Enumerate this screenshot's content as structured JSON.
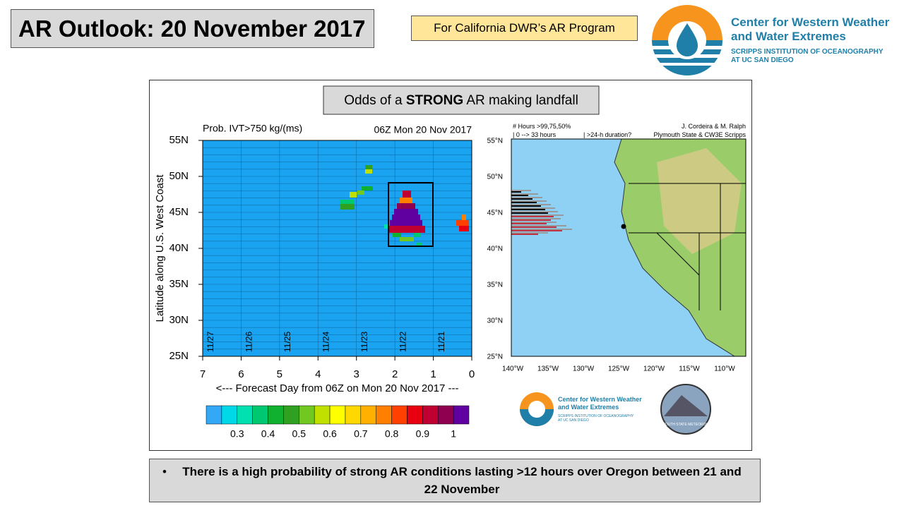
{
  "header": {
    "title": "AR Outlook: 20 November 2017",
    "badge": "For California DWR’s AR Program",
    "logo": {
      "line1": "Center for Western Weather",
      "line2": "and Water Extremes",
      "sub1": "SCRIPPS INSTITUTION OF OCEANOGRAPHY",
      "sub2": "AT UC SAN DIEGO"
    }
  },
  "panel": {
    "title_pre": "Odds of a",
    "title_bold": "STRONG",
    "title_post": "AR making landfall"
  },
  "heatmap": {
    "subtitle_left": "Prob. IVT>750 kg/(ms)",
    "subtitle_right": "06Z Mon 20 Nov 2017",
    "y_label": "Latitude along U.S. West Coast",
    "x_label": "<--- Forecast Day from 06Z on Mon 20 Nov 2017 ---",
    "y_ticks": [
      "55N",
      "50N",
      "45N",
      "40N",
      "35N",
      "30N",
      "25N"
    ],
    "x_ticks": [
      "7",
      "6",
      "5",
      "4",
      "3",
      "2",
      "1",
      "0"
    ],
    "date_labels": [
      "11/27",
      "11/26",
      "11/25",
      "11/24",
      "11/23",
      "11/22",
      "11/21"
    ],
    "colorbar_labels": [
      "0.3",
      "0.4",
      "0.5",
      "0.6",
      "0.7",
      "0.8",
      "0.9",
      "1"
    ]
  },
  "map": {
    "note1": "# Hours >99,75,50%",
    "note2": "| 0 --> 33 hours",
    "note3": "| >24-h duration?",
    "credit1": "J. Cordeira & M. Ralph",
    "credit2": "Plymouth State & CW3E Scripps",
    "lat_ticks": [
      "55°N",
      "50°N",
      "45°N",
      "40°N",
      "35°N",
      "30°N",
      "25°N"
    ],
    "lon_ticks": [
      "140°W",
      "135°W",
      "130°W",
      "125°W",
      "120°W",
      "115°W",
      "110°W"
    ],
    "psu_logo": "PLYMOUTH STATE METEOROLOGY"
  },
  "bullet": "There is a high probability of strong AR conditions lasting >12 hours over Oregon between 21 and 22 November"
}
